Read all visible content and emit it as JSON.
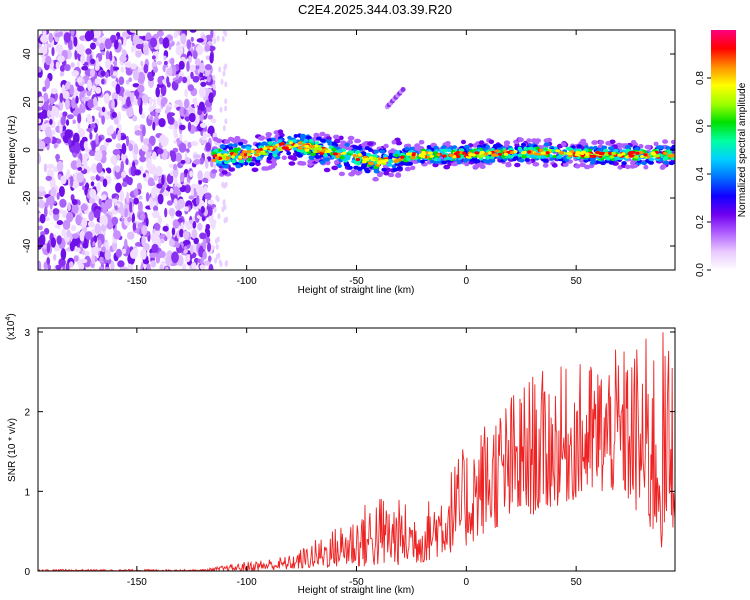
{
  "title": "C2E4.2025.344.03.39.R20",
  "chart_data": [
    {
      "type": "heatmap",
      "name": "spectrogram",
      "xlabel": "Height of straight line (km)",
      "ylabel": "Frequency (Hz)",
      "xlim": [
        -195,
        95
      ],
      "ylim": [
        -50,
        50
      ],
      "xticks": [
        -150,
        -100,
        -50,
        0,
        50
      ],
      "yticks": [
        -40,
        -20,
        0,
        20,
        40
      ],
      "noise_region_x": [
        -195,
        -115
      ],
      "trace": [
        {
          "x": -115,
          "y": -3
        },
        {
          "x": -100,
          "y": -2
        },
        {
          "x": -90,
          "y": 0
        },
        {
          "x": -80,
          "y": 2
        },
        {
          "x": -70,
          "y": 1
        },
        {
          "x": -60,
          "y": -2
        },
        {
          "x": -50,
          "y": -3
        },
        {
          "x": -40,
          "y": -5
        },
        {
          "x": -30,
          "y": -3
        },
        {
          "x": -20,
          "y": -2
        },
        {
          "x": 0,
          "y": -2
        },
        {
          "x": 20,
          "y": -1
        },
        {
          "x": 40,
          "y": -1
        },
        {
          "x": 60,
          "y": -2
        },
        {
          "x": 80,
          "y": -2
        },
        {
          "x": 95,
          "y": -2
        }
      ],
      "colorbar": {
        "label": "Normalized spectral amplitude",
        "range": [
          0,
          1
        ],
        "ticks": [
          "0.0",
          "0.2",
          "0.4",
          "0.6",
          "0.8"
        ],
        "tick_values": [
          0,
          0.2,
          0.4,
          0.6,
          0.8
        ],
        "colors": [
          "#ffffff",
          "#e8c8ff",
          "#b060ff",
          "#7000f0",
          "#1000ff",
          "#0070ff",
          "#00d0ff",
          "#00ffa0",
          "#00e000",
          "#a0ff00",
          "#ffff00",
          "#ff9000",
          "#ff0000",
          "#ff0080"
        ]
      }
    },
    {
      "type": "line",
      "name": "snr",
      "xlabel": "Height of straight line (km)",
      "ylabel": "SNR (10 * v/v)",
      "scale_label": "(x10",
      "scale_exponent": "4",
      "scale_suffix": ")",
      "xlim": [
        -195,
        95
      ],
      "ylim": [
        0,
        3.05
      ],
      "xticks": [
        -150,
        -100,
        -50,
        0,
        50
      ],
      "yticks": [
        0,
        1,
        2,
        3
      ],
      "color": "#ee2222",
      "envelope": [
        {
          "x": -195,
          "min": 0.0,
          "max": 0.02
        },
        {
          "x": -120,
          "min": 0.0,
          "max": 0.02
        },
        {
          "x": -100,
          "min": 0.0,
          "max": 0.12
        },
        {
          "x": -80,
          "min": 0.02,
          "max": 0.2
        },
        {
          "x": -60,
          "min": 0.05,
          "max": 0.55
        },
        {
          "x": -40,
          "min": 0.05,
          "max": 1.0
        },
        {
          "x": -20,
          "min": 0.1,
          "max": 0.8
        },
        {
          "x": 0,
          "min": 0.3,
          "max": 1.6
        },
        {
          "x": 10,
          "min": 0.5,
          "max": 2.0
        },
        {
          "x": 30,
          "min": 0.7,
          "max": 2.5
        },
        {
          "x": 50,
          "min": 0.9,
          "max": 2.6
        },
        {
          "x": 70,
          "min": 1.0,
          "max": 2.8
        },
        {
          "x": 90,
          "min": 0.2,
          "max": 3.05
        },
        {
          "x": 95,
          "min": 0.6,
          "max": 2.9
        }
      ]
    }
  ]
}
